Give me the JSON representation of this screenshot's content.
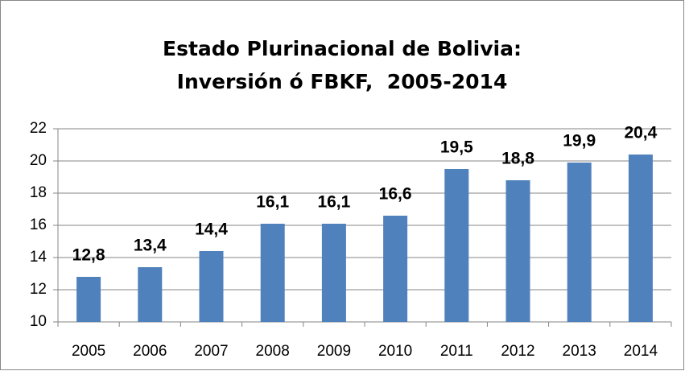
{
  "chart_data": {
    "type": "bar",
    "title": [
      "Estado Plurinacional de Bolivia:",
      "Inversión ó FBKF,  2005-2014"
    ],
    "categories": [
      "2005",
      "2006",
      "2007",
      "2008",
      "2009",
      "2010",
      "2011",
      "2012",
      "2013",
      "2014"
    ],
    "values": [
      12.8,
      13.4,
      14.4,
      16.1,
      16.1,
      16.6,
      19.5,
      18.8,
      19.9,
      20.4
    ],
    "value_labels": [
      "12,8",
      "13,4",
      "14,4",
      "16,1",
      "16,1",
      "16,6",
      "19,5",
      "18,8",
      "19,9",
      "20,4"
    ],
    "color": "#4f81bd",
    "ylim": [
      10,
      22
    ],
    "yticks": [
      10,
      12,
      14,
      16,
      18,
      20,
      22
    ],
    "grid": true
  }
}
